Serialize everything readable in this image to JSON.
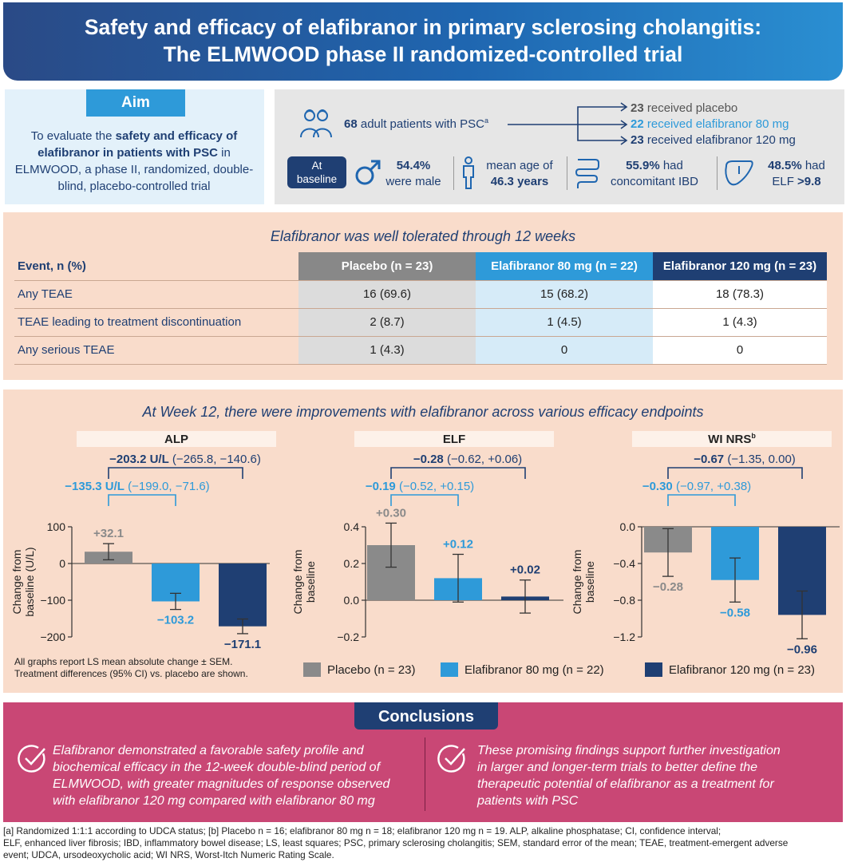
{
  "header": {
    "title_line1": "Safety and efficacy of elafibranor in primary sclerosing cholangitis:",
    "title_line2": "The ELMWOOD phase II randomized-controlled trial"
  },
  "aim": {
    "label": "Aim",
    "text_pre": "To evaluate the ",
    "text_bold": "safety and efficacy of elafibranor in patients with PSC",
    "text_post": " in ELMWOOD, a phase II, randomized, double-blind, placebo-controlled trial"
  },
  "population": {
    "n_bold": "68",
    "n_text": " adult patients with PSC",
    "n_sup": "a",
    "arms": [
      {
        "n": "23",
        "label": " received placebo"
      },
      {
        "n": "22",
        "label": " received elafibranor 80 mg"
      },
      {
        "n": "23",
        "label": " received elafibranor 120 mg"
      }
    ],
    "baseline_label_1": "At",
    "baseline_label_2": "baseline",
    "stats": [
      {
        "bold": "54.4%",
        "text": "were male"
      },
      {
        "text": "mean age of",
        "bold": "46.3 years"
      },
      {
        "bold": "55.9%",
        "text": " had",
        "text2": "concomitant IBD"
      },
      {
        "bold": "48.5%",
        "text": " had",
        "text2": "ELF ",
        "bold2": ">9.8"
      }
    ]
  },
  "safety": {
    "title": "Elafibranor was well tolerated through 12 weeks",
    "columns": [
      "Event, n (%)",
      "Placebo (n = 23)",
      "Elafibranor 80 mg (n = 22)",
      "Elafibranor 120 mg (n = 23)"
    ],
    "rows": [
      [
        "Any TEAE",
        "16 (69.6)",
        "15 (68.2)",
        "18 (78.3)"
      ],
      [
        "TEAE leading to treatment discontinuation",
        "2 (8.7)",
        "1 (4.5)",
        "1 (4.3)"
      ],
      [
        "Any serious TEAE",
        "1 (4.3)",
        "0",
        "0"
      ]
    ]
  },
  "efficacy": {
    "title": "At Week 12, there were improvements with elafibranor across various efficacy endpoints",
    "note_line1": "All graphs report LS mean absolute change ± SEM.",
    "note_line2": "Treatment differences (95% CI) vs. placebo are shown.",
    "legend": [
      "Placebo (n = 23)",
      "Elafibranor 80 mg (n = 22)",
      "Elafibranor 120 mg (n = 23)"
    ],
    "colors": {
      "placebo": "#8a8a8a",
      "ela80": "#2e9ad9",
      "ela120": "#1f3f73"
    }
  },
  "chart_data": [
    {
      "type": "bar",
      "title": "ALP",
      "ylabel": "Change from baseline (U/L)",
      "categories": [
        "Placebo",
        "Elafibranor 80 mg",
        "Elafibranor 120 mg"
      ],
      "values": [
        32.1,
        -103.2,
        -171.1
      ],
      "errors": [
        22,
        22,
        20
      ],
      "value_labels": [
        "+32.1",
        "−103.2",
        "−171.1"
      ],
      "ylim": [
        -200,
        100
      ],
      "yticks": [
        100,
        0,
        -100,
        -200
      ],
      "ytick_labels": [
        "100",
        "0",
        "−100",
        "−200"
      ],
      "diff_120": {
        "bold": "−203.2 U/L",
        "ci": " (−265.8, −140.6)"
      },
      "diff_80": {
        "bold": "−135.3 U/L",
        "ci": " (−199.0, −71.6)"
      }
    },
    {
      "type": "bar",
      "title": "ELF",
      "ylabel": "Change from baseline",
      "categories": [
        "Placebo",
        "Elafibranor 80 mg",
        "Elafibranor 120 mg"
      ],
      "values": [
        0.3,
        0.12,
        0.02
      ],
      "errors": [
        0.12,
        0.13,
        0.09
      ],
      "value_labels": [
        "+0.30",
        "+0.12",
        "+0.02"
      ],
      "ylim": [
        -0.2,
        0.4
      ],
      "yticks": [
        0.4,
        0.2,
        0.0,
        -0.2
      ],
      "ytick_labels": [
        "0.4",
        "0.2",
        "0.0",
        "−0.2"
      ],
      "diff_120": {
        "bold": "−0.28",
        "ci": " (−0.62, +0.06)"
      },
      "diff_80": {
        "bold": "−0.19",
        "ci": " (−0.52, +0.15)"
      }
    },
    {
      "type": "bar",
      "title": "WI NRS",
      "title_sup": "b",
      "ylabel": "Change from baseline",
      "categories": [
        "Placebo",
        "Elafibranor 80 mg",
        "Elafibranor 120 mg"
      ],
      "values": [
        -0.28,
        -0.58,
        -0.96
      ],
      "errors": [
        0.26,
        0.24,
        0.26
      ],
      "value_labels": [
        "−0.28",
        "−0.58",
        "−0.96"
      ],
      "ylim": [
        -1.2,
        0.0
      ],
      "yticks": [
        0.0,
        -0.4,
        -0.8,
        -1.2
      ],
      "ytick_labels": [
        "0.0",
        "−0.4",
        "−0.8",
        "−1.2"
      ],
      "diff_120": {
        "bold": "−0.67",
        "ci": " (−1.35, 0.00)"
      },
      "diff_80": {
        "bold": "−0.30",
        "ci": " (−0.97, +0.38)"
      }
    }
  ],
  "conclusions": {
    "label": "Conclusions",
    "left_lines": [
      "Elafibranor demonstrated a favorable safety profile and",
      "biochemical efficacy in the 12-week double-blind period of",
      "ELMWOOD, with greater magnitudes of response observed",
      "with elafibranor 120 mg compared with elafibranor 80 mg"
    ],
    "right_lines": [
      "These promising findings support further investigation",
      "in larger and longer-term trials to better define the",
      "therapeutic potential of elafibranor as a treatment for",
      "patients with PSC"
    ]
  },
  "references": {
    "line1": "[a] Randomized 1:1:1 according to UDCA status; [b] Placebo n = 16; elafibranor 80 mg n = 18; elafibranor 120 mg n = 19. ALP, alkaline phosphatase; CI, confidence interval;",
    "line2": "ELF, enhanced liver fibrosis; IBD, inflammatory bowel disease; LS, least squares; PSC, primary sclerosing cholangitis; SEM, standard error of the mean; TEAE, treatment-emergent adverse",
    "line3": "event; UDCA, ursodeoxycholic acid; WI NRS, Worst-Itch Numeric Rating Scale."
  }
}
